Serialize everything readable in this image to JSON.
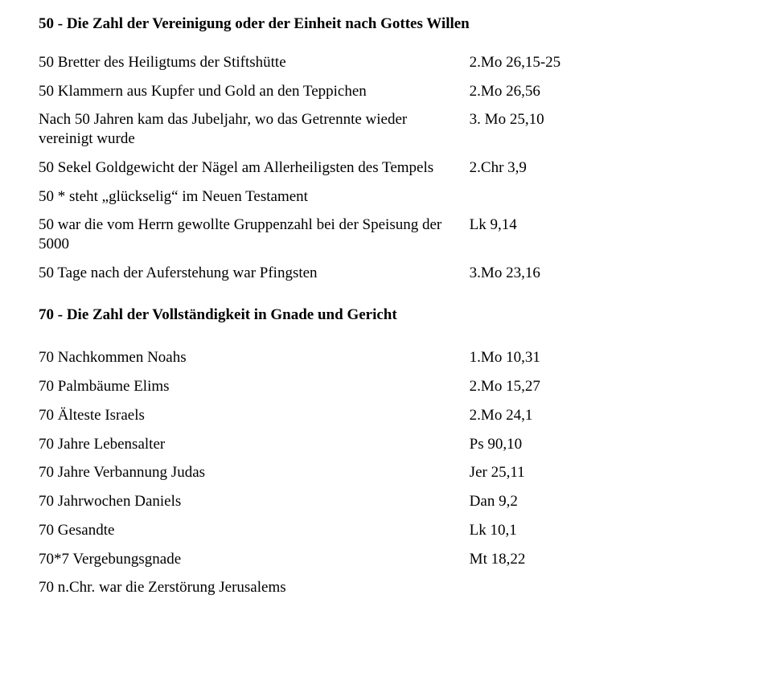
{
  "section50": {
    "title": "50 - Die Zahl der Vereinigung oder der Einheit nach Gottes Willen",
    "rows": [
      {
        "left": "50 Bretter des Heiligtums der Stiftshütte",
        "right": "2.Mo 26,15-25"
      },
      {
        "left": "50 Klammern aus Kupfer und Gold an den Teppichen",
        "right": "2.Mo 26,56"
      },
      {
        "left": "Nach 50 Jahren kam das Jubeljahr, wo das Getrennte wieder vereinigt wurde",
        "right": "3. Mo 25,10"
      },
      {
        "left": "50 Sekel Goldgewicht der Nägel am Allerheiligsten des Tempels",
        "right": "2.Chr 3,9"
      },
      {
        "left": "50 * steht „glückselig“ im Neuen Testament",
        "right": ""
      },
      {
        "left": "50 war die vom Herrn gewollte Gruppenzahl bei der Speisung der 5000",
        "right": "Lk 9,14"
      },
      {
        "left": "50 Tage nach der Auferstehung war Pfingsten",
        "right": "3.Mo 23,16"
      }
    ]
  },
  "section70": {
    "title": "70 - Die Zahl der Vollständigkeit in Gnade und Gericht",
    "rows": [
      {
        "left": "70 Nachkommen Noahs",
        "right": "1.Mo 10,31"
      },
      {
        "left": "70 Palmbäume Elims",
        "right": "2.Mo 15,27"
      },
      {
        "left": "70 Älteste Israels",
        "right": "2.Mo 24,1"
      },
      {
        "left": "70 Jahre Lebensalter",
        "right": "Ps 90,10"
      },
      {
        "left": "70 Jahre Verbannung Judas",
        "right": "Jer 25,11"
      },
      {
        "left": "70 Jahrwochen Daniels",
        "right": "Dan 9,2"
      },
      {
        "left": "70 Gesandte",
        "right": "Lk 10,1"
      },
      {
        "left": "70*7 Vergebungsgnade",
        "right": "Mt 18,22"
      },
      {
        "left": "70 n.Chr. war die Zerstörung Jerusalems",
        "right": ""
      }
    ]
  }
}
